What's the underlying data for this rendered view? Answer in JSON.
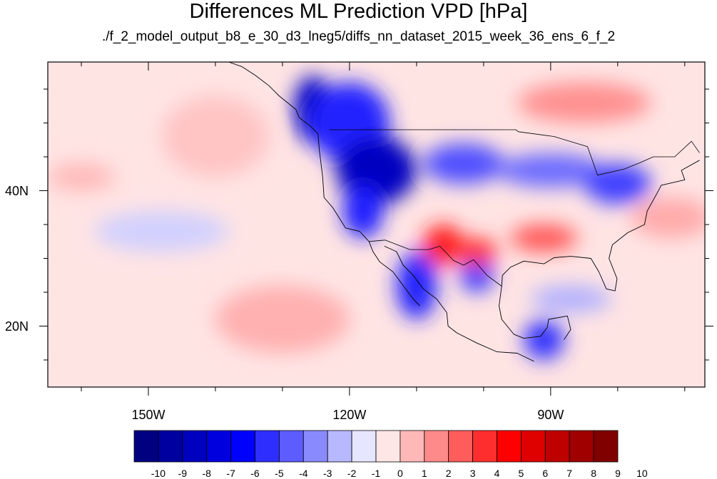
{
  "map": {
    "title": "Differences ML Prediction VPD [hPa]",
    "subtitle": "./f_2_model_output_b8_e_30_d3_lneg5/diffs_nn_dataset_2015_week_36_ens_6_f_2",
    "x_axis": {
      "min_deg": -165,
      "max_deg": -67,
      "major_ticks": [
        {
          "deg": -150,
          "label": "150W"
        },
        {
          "deg": -120,
          "label": "120W"
        },
        {
          "deg": -90,
          "label": "90W"
        }
      ],
      "minor_ticks_deg": [
        -160,
        -140,
        -130,
        -110,
        -100,
        -80,
        -70
      ]
    },
    "y_axis": {
      "min_deg": 11,
      "max_deg": 59,
      "major_ticks": [
        {
          "deg": 40,
          "label": "40N"
        },
        {
          "deg": 20,
          "label": "20N"
        }
      ],
      "minor_ticks_deg": [
        15,
        25,
        30,
        35,
        45,
        50,
        55
      ]
    },
    "colorbar": {
      "labels": [
        "-10",
        "-9",
        "-8",
        "-7",
        "-6",
        "-5",
        "-4",
        "-3",
        "-2",
        "-1",
        "0",
        "1",
        "2",
        "3",
        "4",
        "5",
        "6",
        "7",
        "8",
        "9",
        "10"
      ],
      "colors": [
        "#000080",
        "#0000a0",
        "#0000bf",
        "#0000df",
        "#0000ff",
        "#2e2eff",
        "#5c5cff",
        "#8a8aff",
        "#b8b8ff",
        "#e6e6ff",
        "#ffe6e6",
        "#ffb8b8",
        "#ff8a8a",
        "#ff5c5c",
        "#ff2e2e",
        "#ff0000",
        "#df0000",
        "#bf0000",
        "#a00000",
        "#800000"
      ]
    }
  },
  "field": {
    "background_color": "#ffe4e4",
    "blobs": [
      {
        "lon": -125.5,
        "lat": 52,
        "rlon": 2.8,
        "rlat": 5,
        "color": "#0000c4"
      },
      {
        "lon": -120,
        "lat": 50,
        "rlon": 6,
        "rlat": 6,
        "color": "#2020ff"
      },
      {
        "lon": -116,
        "lat": 43,
        "rlon": 6,
        "rlat": 5,
        "color": "#0000c0"
      },
      {
        "lon": -118,
        "lat": 37,
        "rlon": 3,
        "rlat": 4,
        "color": "#1a1aff"
      },
      {
        "lon": -103,
        "lat": 44,
        "rlon": 6,
        "rlat": 3,
        "color": "#5050ff"
      },
      {
        "lon": -90,
        "lat": 43,
        "rlon": 8,
        "rlat": 2.5,
        "color": "#6a6aff"
      },
      {
        "lon": -80,
        "lat": 41,
        "rlon": 5,
        "rlat": 3,
        "color": "#4040ff"
      },
      {
        "lon": -110,
        "lat": 26,
        "rlon": 3,
        "rlat": 5,
        "color": "#2020ff"
      },
      {
        "lon": -101,
        "lat": 27.5,
        "rlon": 2.5,
        "rlat": 2.5,
        "color": "#3a3aff"
      },
      {
        "lon": -91,
        "lat": 18,
        "rlon": 3,
        "rlat": 3,
        "color": "#3030ff"
      },
      {
        "lon": -106,
        "lat": 32,
        "rlon": 3,
        "rlat": 3,
        "color": "#ff1a1a"
      },
      {
        "lon": -101,
        "lat": 31,
        "rlon": 3,
        "rlat": 2,
        "color": "#ff3030"
      },
      {
        "lon": -91,
        "lat": 33,
        "rlon": 5,
        "rlat": 2,
        "color": "#ff5555"
      },
      {
        "lon": -130,
        "lat": 21,
        "rlon": 10,
        "rlat": 5,
        "color": "#ffb0b0"
      },
      {
        "lon": -85,
        "lat": 53,
        "rlon": 10,
        "rlat": 3,
        "color": "#ff9090"
      },
      {
        "lon": -72,
        "lat": 36,
        "rlon": 6,
        "rlat": 3,
        "color": "#ffaaaa"
      },
      {
        "lon": -148,
        "lat": 34,
        "rlon": 10,
        "rlat": 3,
        "color": "#d0d0ff"
      },
      {
        "lon": -87,
        "lat": 24,
        "rlon": 6,
        "rlat": 2,
        "color": "#b0b0ff"
      },
      {
        "lon": -160,
        "lat": 42,
        "rlon": 5,
        "rlat": 2,
        "color": "#ffb8b8"
      },
      {
        "lon": -140,
        "lat": 48,
        "rlon": 8,
        "rlat": 6,
        "color": "#ffc4c4"
      }
    ]
  },
  "boundaries": {
    "coastlines": [
      {
        "name": "west-coast",
        "points": [
          [
            -124.7,
            48.4
          ],
          [
            -124.5,
            46
          ],
          [
            -124,
            42
          ],
          [
            -123.8,
            39
          ],
          [
            -122.5,
            37.5
          ],
          [
            -120.6,
            34.5
          ],
          [
            -118.5,
            34
          ],
          [
            -117.1,
            32.5
          ],
          [
            -116.5,
            31
          ],
          [
            -115.5,
            29.5
          ],
          [
            -113.5,
            28
          ],
          [
            -112,
            26
          ],
          [
            -110.5,
            24
          ],
          [
            -109.5,
            23
          ]
        ]
      },
      {
        "name": "gulf-of-california",
        "points": [
          [
            -114.8,
            31.8
          ],
          [
            -113,
            31
          ],
          [
            -112,
            29
          ],
          [
            -110.5,
            27.5
          ],
          [
            -109,
            25.5
          ],
          [
            -107,
            24
          ],
          [
            -105.5,
            22
          ],
          [
            -105.3,
            20
          ],
          [
            -104,
            19
          ],
          [
            -101,
            17.5
          ],
          [
            -98,
            16.2
          ],
          [
            -95,
            16
          ],
          [
            -92.5,
            14.8
          ]
        ]
      },
      {
        "name": "gulf-of-mexico",
        "points": [
          [
            -97.3,
            25.9
          ],
          [
            -97.2,
            27.5
          ],
          [
            -96,
            28.7
          ],
          [
            -94,
            29.6
          ],
          [
            -91,
            29.2
          ],
          [
            -89.5,
            30.1
          ],
          [
            -87,
            30.3
          ],
          [
            -84,
            30
          ],
          [
            -82.8,
            28
          ],
          [
            -81.7,
            25.5
          ],
          [
            -80.4,
            25.2
          ],
          [
            -80.1,
            27
          ],
          [
            -81.3,
            30
          ],
          [
            -80.8,
            32
          ],
          [
            -78.5,
            33.8
          ],
          [
            -76,
            35
          ],
          [
            -75.6,
            37
          ],
          [
            -74.2,
            39.5
          ],
          [
            -73.5,
            40.8
          ],
          [
            -70,
            41.6
          ],
          [
            -70.5,
            43
          ],
          [
            -67.8,
            44.5
          ]
        ]
      },
      {
        "name": "mexico-gulf",
        "points": [
          [
            -97.3,
            25.9
          ],
          [
            -97.7,
            23
          ],
          [
            -97.3,
            21
          ],
          [
            -95.5,
            18.8
          ],
          [
            -94,
            18.2
          ],
          [
            -91.5,
            18.5
          ],
          [
            -90.5,
            19.8
          ],
          [
            -90.3,
            21
          ],
          [
            -87.5,
            21.5
          ],
          [
            -87,
            19.5
          ],
          [
            -88,
            18
          ]
        ]
      },
      {
        "name": "bc-coast",
        "points": [
          [
            -124.7,
            48.4
          ],
          [
            -125.8,
            49.5
          ],
          [
            -127.5,
            50.8
          ],
          [
            -128,
            52
          ],
          [
            -130.5,
            54
          ],
          [
            -132,
            55.5
          ],
          [
            -134,
            57
          ],
          [
            -136,
            58.3
          ],
          [
            -138,
            59
          ]
        ]
      }
    ],
    "borders": [
      {
        "name": "us-canada-border",
        "points": [
          [
            -123,
            49
          ],
          [
            -95.2,
            49
          ],
          [
            -94.8,
            48.7
          ],
          [
            -89.5,
            48
          ],
          [
            -84.5,
            46.5
          ],
          [
            -83,
            42.3
          ],
          [
            -79,
            43.2
          ],
          [
            -76.5,
            44.2
          ],
          [
            -74.7,
            45
          ],
          [
            -71.5,
            45
          ],
          [
            -69,
            47.3
          ],
          [
            -67.8,
            45.6
          ]
        ]
      },
      {
        "name": "us-mexico-border",
        "points": [
          [
            -117.1,
            32.5
          ],
          [
            -114.7,
            32.7
          ],
          [
            -111,
            31.3
          ],
          [
            -108.2,
            31.3
          ],
          [
            -106.5,
            31.8
          ],
          [
            -104.5,
            29.7
          ],
          [
            -103,
            29
          ],
          [
            -101.5,
            29.8
          ],
          [
            -99.5,
            27.5
          ],
          [
            -97.3,
            25.9
          ]
        ]
      }
    ]
  }
}
